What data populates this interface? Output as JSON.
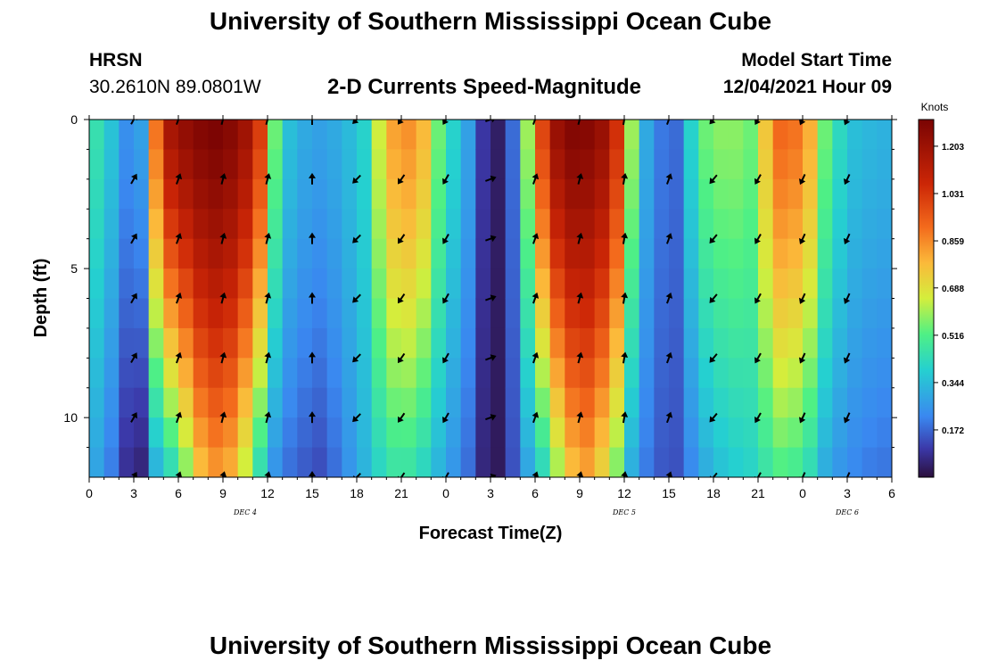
{
  "header": {
    "title": "University of Southern Mississippi Ocean Cube",
    "station": "HRSN",
    "coordinates": "30.2610N  89.0801W",
    "subtitle": "2-D Currents Speed-Magnitude",
    "model_start_label": "Model Start Time",
    "model_start_value": "12/04/2021 Hour 09"
  },
  "footer": {
    "title": "University of Southern Mississippi Ocean Cube"
  },
  "chart_data": {
    "type": "heatmap",
    "title": "2-D Currents Speed-Magnitude",
    "xlabel": "Forecast Time(Z)",
    "ylabel": "Depth (ft)",
    "xlim": [
      0,
      54
    ],
    "ylim": [
      0,
      12
    ],
    "y_inverted": true,
    "x_ticks": [
      0,
      3,
      6,
      9,
      12,
      15,
      18,
      21,
      24,
      27,
      30,
      33,
      36,
      39,
      42,
      45,
      48,
      51,
      54
    ],
    "x_tick_labels": [
      "0",
      "3",
      "6",
      "9",
      "12",
      "15",
      "18",
      "21",
      "0",
      "3",
      "6",
      "9",
      "12",
      "15",
      "18",
      "21",
      "0",
      "3",
      "6"
    ],
    "y_ticks": [
      0,
      5,
      10
    ],
    "y_tick_labels": [
      "0",
      "5",
      "10"
    ],
    "date_labels": [
      {
        "text": "DEC 4",
        "x": 10.5
      },
      {
        "text": "DEC 5",
        "x": 36
      },
      {
        "text": "DEC 6",
        "x": 51
      }
    ],
    "colorbar": {
      "title": "Knots",
      "min": 0.0,
      "max": 1.3,
      "ticks": [
        0.172,
        0.344,
        0.516,
        0.688,
        0.859,
        1.031,
        1.203
      ],
      "tick_labels": [
        "0.172",
        "0.344",
        "0.516",
        "0.688",
        "0.859",
        "1.031",
        "1.203"
      ]
    },
    "speed_profile": [
      {
        "t": 0,
        "surf": 0.45,
        "bot": 0.28
      },
      {
        "t": 1,
        "surf": 0.36,
        "bot": 0.2
      },
      {
        "t": 2,
        "surf": 0.24,
        "bot": 0.08
      },
      {
        "t": 3,
        "surf": 0.28,
        "bot": 0.05
      },
      {
        "t": 4,
        "surf": 0.9,
        "bot": 0.3
      },
      {
        "t": 5,
        "surf": 1.18,
        "bot": 0.4
      },
      {
        "t": 6,
        "surf": 1.24,
        "bot": 0.55
      },
      {
        "t": 7,
        "surf": 1.28,
        "bot": 0.75
      },
      {
        "t": 8,
        "surf": 1.3,
        "bot": 0.82
      },
      {
        "t": 9,
        "surf": 1.27,
        "bot": 0.78
      },
      {
        "t": 10,
        "surf": 1.2,
        "bot": 0.62
      },
      {
        "t": 11,
        "surf": 1.02,
        "bot": 0.42
      },
      {
        "t": 12,
        "surf": 0.55,
        "bot": 0.24
      },
      {
        "t": 13,
        "surf": 0.35,
        "bot": 0.18
      },
      {
        "t": 14,
        "surf": 0.3,
        "bot": 0.15
      },
      {
        "t": 15,
        "surf": 0.28,
        "bot": 0.13
      },
      {
        "t": 16,
        "surf": 0.3,
        "bot": 0.18
      },
      {
        "t": 17,
        "surf": 0.34,
        "bot": 0.25
      },
      {
        "t": 18,
        "surf": 0.4,
        "bot": 0.32
      },
      {
        "t": 19,
        "surf": 0.65,
        "bot": 0.4
      },
      {
        "t": 20,
        "surf": 0.82,
        "bot": 0.45
      },
      {
        "t": 21,
        "surf": 0.85,
        "bot": 0.45
      },
      {
        "t": 22,
        "surf": 0.78,
        "bot": 0.4
      },
      {
        "t": 23,
        "surf": 0.55,
        "bot": 0.32
      },
      {
        "t": 24,
        "surf": 0.4,
        "bot": 0.25
      },
      {
        "t": 25,
        "surf": 0.28,
        "bot": 0.18
      },
      {
        "t": 26,
        "surf": 0.1,
        "bot": 0.06
      },
      {
        "t": 27,
        "surf": 0.04,
        "bot": 0.03
      },
      {
        "t": 28,
        "surf": 0.18,
        "bot": 0.14
      },
      {
        "t": 29,
        "surf": 0.6,
        "bot": 0.28
      },
      {
        "t": 30,
        "surf": 1.0,
        "bot": 0.4
      },
      {
        "t": 31,
        "surf": 1.22,
        "bot": 0.58
      },
      {
        "t": 32,
        "surf": 1.28,
        "bot": 0.75
      },
      {
        "t": 33,
        "surf": 1.27,
        "bot": 0.8
      },
      {
        "t": 34,
        "surf": 1.22,
        "bot": 0.7
      },
      {
        "t": 35,
        "surf": 1.05,
        "bot": 0.55
      },
      {
        "t": 36,
        "surf": 0.6,
        "bot": 0.3
      },
      {
        "t": 37,
        "surf": 0.3,
        "bot": 0.2
      },
      {
        "t": 38,
        "surf": 0.2,
        "bot": 0.15
      },
      {
        "t": 39,
        "surf": 0.18,
        "bot": 0.14
      },
      {
        "t": 40,
        "surf": 0.4,
        "bot": 0.22
      },
      {
        "t": 41,
        "surf": 0.55,
        "bot": 0.3
      },
      {
        "t": 42,
        "surf": 0.58,
        "bot": 0.35
      },
      {
        "t": 43,
        "surf": 0.58,
        "bot": 0.38
      },
      {
        "t": 44,
        "surf": 0.55,
        "bot": 0.4
      },
      {
        "t": 45,
        "surf": 0.75,
        "bot": 0.45
      },
      {
        "t": 46,
        "surf": 0.92,
        "bot": 0.5
      },
      {
        "t": 47,
        "surf": 0.9,
        "bot": 0.48
      },
      {
        "t": 48,
        "surf": 0.8,
        "bot": 0.42
      },
      {
        "t": 49,
        "surf": 0.55,
        "bot": 0.3
      },
      {
        "t": 50,
        "surf": 0.42,
        "bot": 0.25
      },
      {
        "t": 51,
        "surf": 0.35,
        "bot": 0.22
      },
      {
        "t": 52,
        "surf": 0.33,
        "bot": 0.2
      },
      {
        "t": 53,
        "surf": 0.32,
        "bot": 0.19
      },
      {
        "t": 54,
        "surf": 0.32,
        "bot": 0.19
      }
    ],
    "arrow_times": [
      3,
      6,
      9,
      12,
      15,
      18,
      21,
      24,
      27,
      30,
      33,
      36,
      39,
      42,
      45,
      48,
      51
    ],
    "arrow_depths": [
      0,
      2,
      4,
      6,
      8,
      10,
      12
    ],
    "arrow_directions_deg": [
      60,
      70,
      75,
      75,
      90,
      225,
      235,
      240,
      20,
      70,
      75,
      80,
      70,
      230,
      240,
      245,
      245
    ]
  }
}
